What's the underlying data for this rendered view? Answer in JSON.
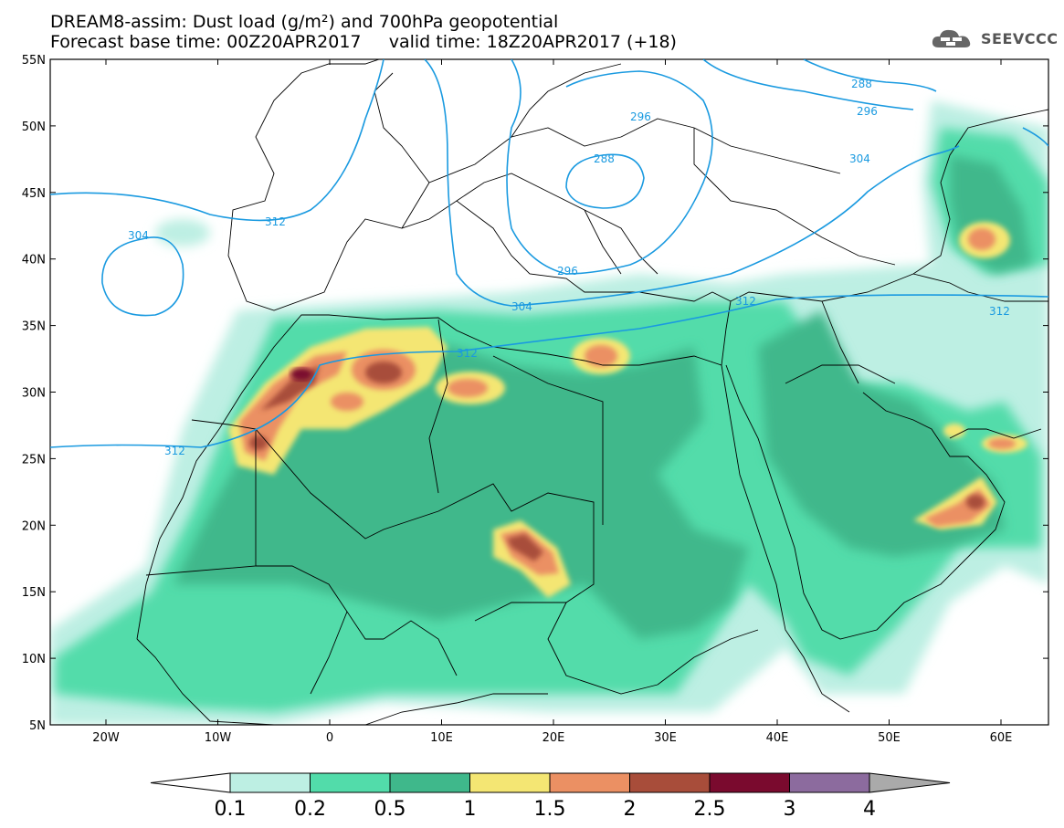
{
  "title": {
    "line1": "DREAM8-assim: Dust load (g/m²) and 700hPa geopotential",
    "line2": "Forecast base time: 00Z20APR2017     valid time: 18Z20APR2017 (+18)"
  },
  "logo": {
    "text": "SEEVCCC",
    "icon": "cloud-logo-icon"
  },
  "axes": {
    "lat_ticks": [
      "55N",
      "50N",
      "45N",
      "40N",
      "35N",
      "30N",
      "25N",
      "20N",
      "15N",
      "10N",
      "5N"
    ],
    "lon_ticks": [
      "20W",
      "10W",
      "0",
      "10E",
      "20E",
      "30E",
      "40E",
      "50E",
      "60E"
    ]
  },
  "isolines": [
    "288",
    "296",
    "304",
    "312"
  ],
  "colorbar": {
    "labels": [
      "0.1",
      "0.2",
      "0.5",
      "1",
      "1.5",
      "2",
      "2.5",
      "3",
      "4"
    ],
    "colors": [
      "#bdefe3",
      "#52dcaa",
      "#3fb88b",
      "#f4e673",
      "#eb9063",
      "#a84d3a",
      "#7a0a2e",
      "#8c6b9e",
      "#aaaaaa"
    ]
  }
}
